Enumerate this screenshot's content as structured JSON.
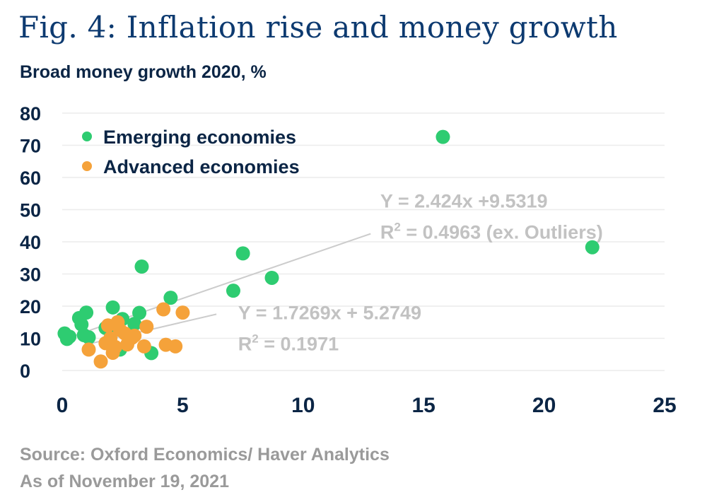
{
  "title": "Fig. 4: Inflation rise and money growth",
  "subtitle": "Broad money growth 2020, %",
  "source_line": "Source: Oxford Economics/ Haver Analytics",
  "date_line": "As of November 19, 2021",
  "colors": {
    "emerging": "#2ecc71",
    "advanced": "#f5a23a",
    "axis_text": "#0b2545",
    "trend": "#cccccc",
    "annotation": "#c2c2c2",
    "grid": "#ececec"
  },
  "chart_data": {
    "type": "scatter",
    "title": "Fig. 4: Inflation rise and money growth",
    "ylabel": "Broad money growth 2020, %",
    "xlabel": "",
    "xlim": [
      0,
      25
    ],
    "ylim": [
      0,
      80
    ],
    "xticks": [
      "0",
      "5",
      "10",
      "15",
      "20",
      "25"
    ],
    "yticks": [
      "0",
      "10",
      "20",
      "30",
      "40",
      "50",
      "60",
      "70",
      "80"
    ],
    "grid": true,
    "legend_position": "top-left",
    "series": [
      {
        "name": "Emerging economies",
        "color": "#2ecc71",
        "points": [
          {
            "x": 0.1,
            "y": 11.5
          },
          {
            "x": 0.2,
            "y": 9.8
          },
          {
            "x": 0.3,
            "y": 10.5
          },
          {
            "x": 0.7,
            "y": 16.3
          },
          {
            "x": 0.8,
            "y": 14.3
          },
          {
            "x": 0.9,
            "y": 11.0
          },
          {
            "x": 1.0,
            "y": 18.0
          },
          {
            "x": 1.1,
            "y": 10.3
          },
          {
            "x": 1.8,
            "y": 13.2
          },
          {
            "x": 2.0,
            "y": 8.5
          },
          {
            "x": 2.1,
            "y": 19.6
          },
          {
            "x": 2.2,
            "y": 14.0
          },
          {
            "x": 2.4,
            "y": 6.5
          },
          {
            "x": 2.5,
            "y": 16.0
          },
          {
            "x": 3.0,
            "y": 14.5
          },
          {
            "x": 3.2,
            "y": 17.9
          },
          {
            "x": 3.3,
            "y": 32.3
          },
          {
            "x": 3.7,
            "y": 5.4
          },
          {
            "x": 4.5,
            "y": 22.6
          },
          {
            "x": 7.1,
            "y": 24.8
          },
          {
            "x": 7.5,
            "y": 36.4
          },
          {
            "x": 8.7,
            "y": 28.8
          },
          {
            "x": 15.8,
            "y": 72.6
          },
          {
            "x": 22.0,
            "y": 38.3
          }
        ]
      },
      {
        "name": "Advanced economies",
        "color": "#f5a23a",
        "points": [
          {
            "x": 1.1,
            "y": 6.5
          },
          {
            "x": 1.6,
            "y": 2.8
          },
          {
            "x": 1.8,
            "y": 8.5
          },
          {
            "x": 1.9,
            "y": 14.0
          },
          {
            "x": 2.0,
            "y": 10.0
          },
          {
            "x": 2.1,
            "y": 5.5
          },
          {
            "x": 2.2,
            "y": 7.3
          },
          {
            "x": 2.3,
            "y": 15.0
          },
          {
            "x": 2.4,
            "y": 12.6
          },
          {
            "x": 2.6,
            "y": 11.5
          },
          {
            "x": 2.7,
            "y": 8.1
          },
          {
            "x": 2.9,
            "y": 10.2
          },
          {
            "x": 3.0,
            "y": 10.8
          },
          {
            "x": 3.4,
            "y": 7.5
          },
          {
            "x": 3.5,
            "y": 13.6
          },
          {
            "x": 4.2,
            "y": 19.0
          },
          {
            "x": 4.3,
            "y": 8.0
          },
          {
            "x": 4.7,
            "y": 7.5
          },
          {
            "x": 5.0,
            "y": 18.0
          }
        ]
      }
    ],
    "trendlines": [
      {
        "name": "emerging-trend",
        "from": {
          "x": 0.3,
          "y": 10.3
        },
        "to": {
          "x": 12.8,
          "y": 42.5
        },
        "label_line1": "Y = 2.424x +9.5319",
        "label_line2_prefix": "R",
        "label_line2_sup": "2",
        "label_line2_suffix": " = 0.4963 (ex. Outliers)",
        "label_anchor": {
          "x": 13.2,
          "y": 50.7
        }
      },
      {
        "name": "advanced-trend",
        "from": {
          "x": 0.9,
          "y": 7.9
        },
        "to": {
          "x": 6.4,
          "y": 17.5
        },
        "label_line1": "Y = 1.7269x + 5.2749",
        "label_line2_prefix": "R",
        "label_line2_sup": "2",
        "label_line2_suffix": " = 0.1971",
        "label_anchor": {
          "x": 7.3,
          "y": 15.9
        }
      }
    ]
  }
}
